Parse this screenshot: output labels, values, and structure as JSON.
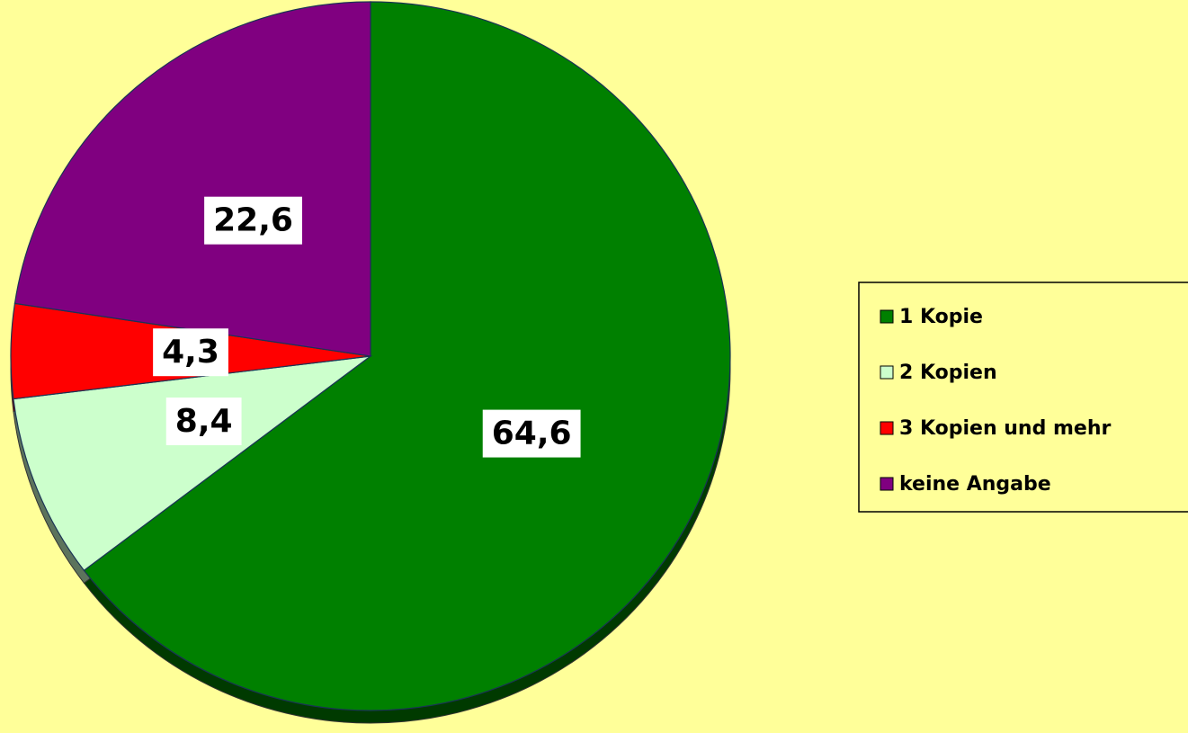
{
  "chart_data": {
    "type": "pie",
    "categories": [
      "1 Kopie",
      "2 Kopien",
      "3 Kopien und mehr",
      "keine Angabe"
    ],
    "values": [
      64.6,
      8.4,
      4.3,
      22.6
    ],
    "value_labels": [
      "64,6",
      "8,4",
      "4,3",
      "22,6"
    ],
    "colors": [
      "#008000",
      "#ccffcc",
      "#ff0000",
      "#800080"
    ],
    "legend": "right"
  }
}
